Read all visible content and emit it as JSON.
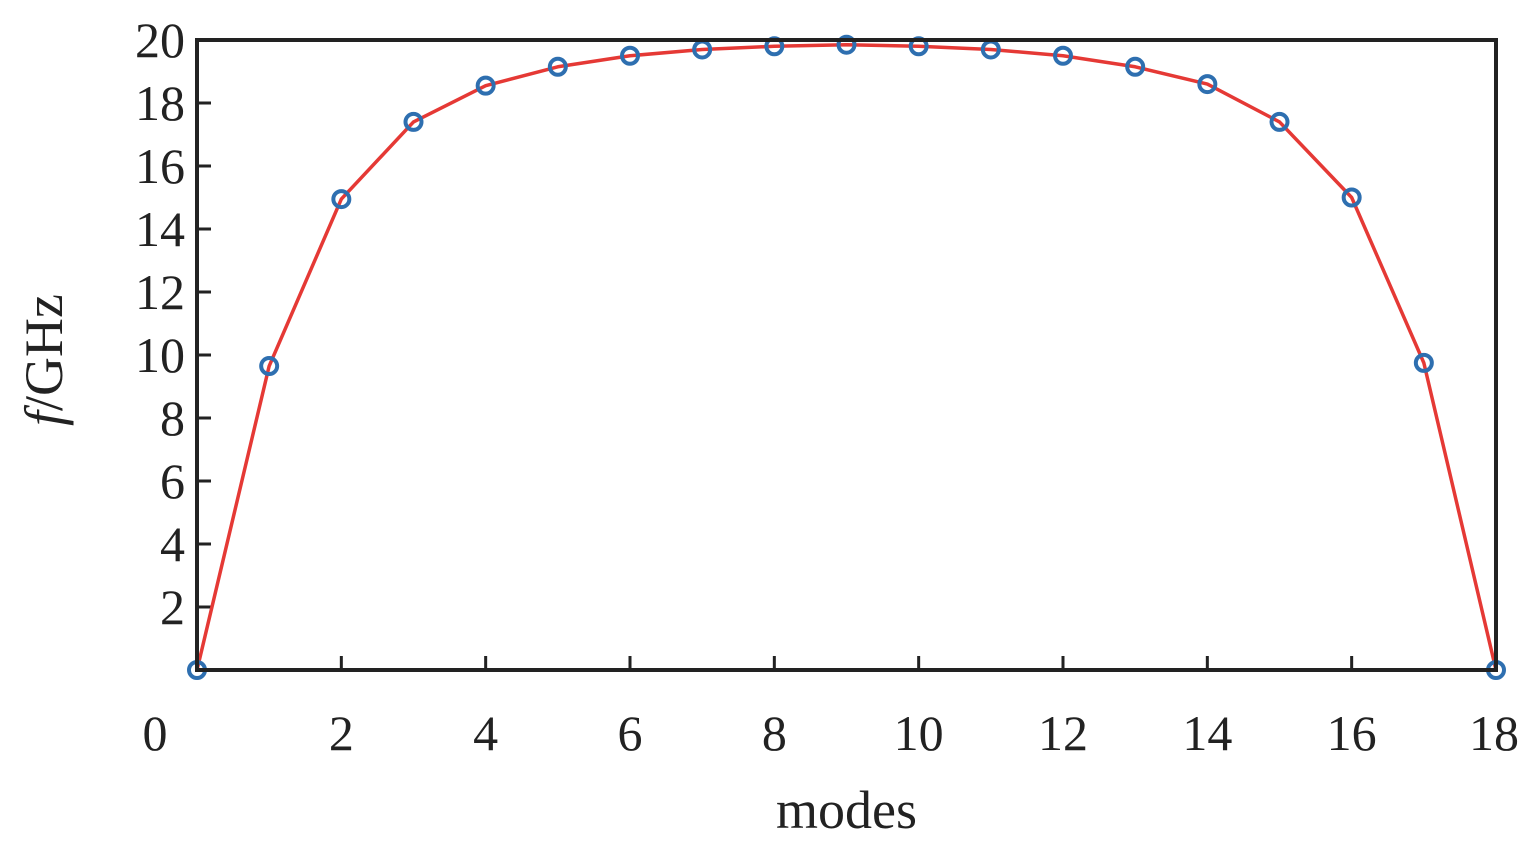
{
  "chart_data": {
    "type": "line",
    "xlabel": "modes",
    "ylabel_italic": "f",
    "ylabel_rest": "/GHz",
    "xlim": [
      0,
      18
    ],
    "ylim": [
      0,
      20
    ],
    "x_ticks": [
      0,
      2,
      4,
      6,
      8,
      10,
      12,
      14,
      16,
      18
    ],
    "x_tick_labels": [
      "0",
      "2",
      "4",
      "6",
      "8",
      "10",
      "12",
      "14",
      "16",
      "18"
    ],
    "y_ticks": [
      2,
      4,
      6,
      8,
      10,
      12,
      14,
      16,
      18,
      20
    ],
    "y_tick_labels": [
      "2",
      "4",
      "6",
      "8",
      "10",
      "12",
      "14",
      "16",
      "18",
      "20"
    ],
    "grid": false,
    "line_color": "#e53935",
    "marker_color": "#2e6fb0",
    "marker": "circle-open",
    "series": [
      {
        "x": [
          0,
          1,
          2,
          3,
          4,
          5,
          6,
          7,
          8,
          9,
          10,
          11,
          12,
          13,
          14,
          15,
          16,
          17,
          18
        ],
        "values": [
          0,
          9.65,
          14.95,
          17.4,
          18.55,
          19.15,
          19.5,
          19.7,
          19.8,
          19.85,
          19.8,
          19.7,
          19.5,
          19.15,
          18.6,
          17.4,
          15.0,
          9.75,
          0
        ]
      }
    ]
  }
}
